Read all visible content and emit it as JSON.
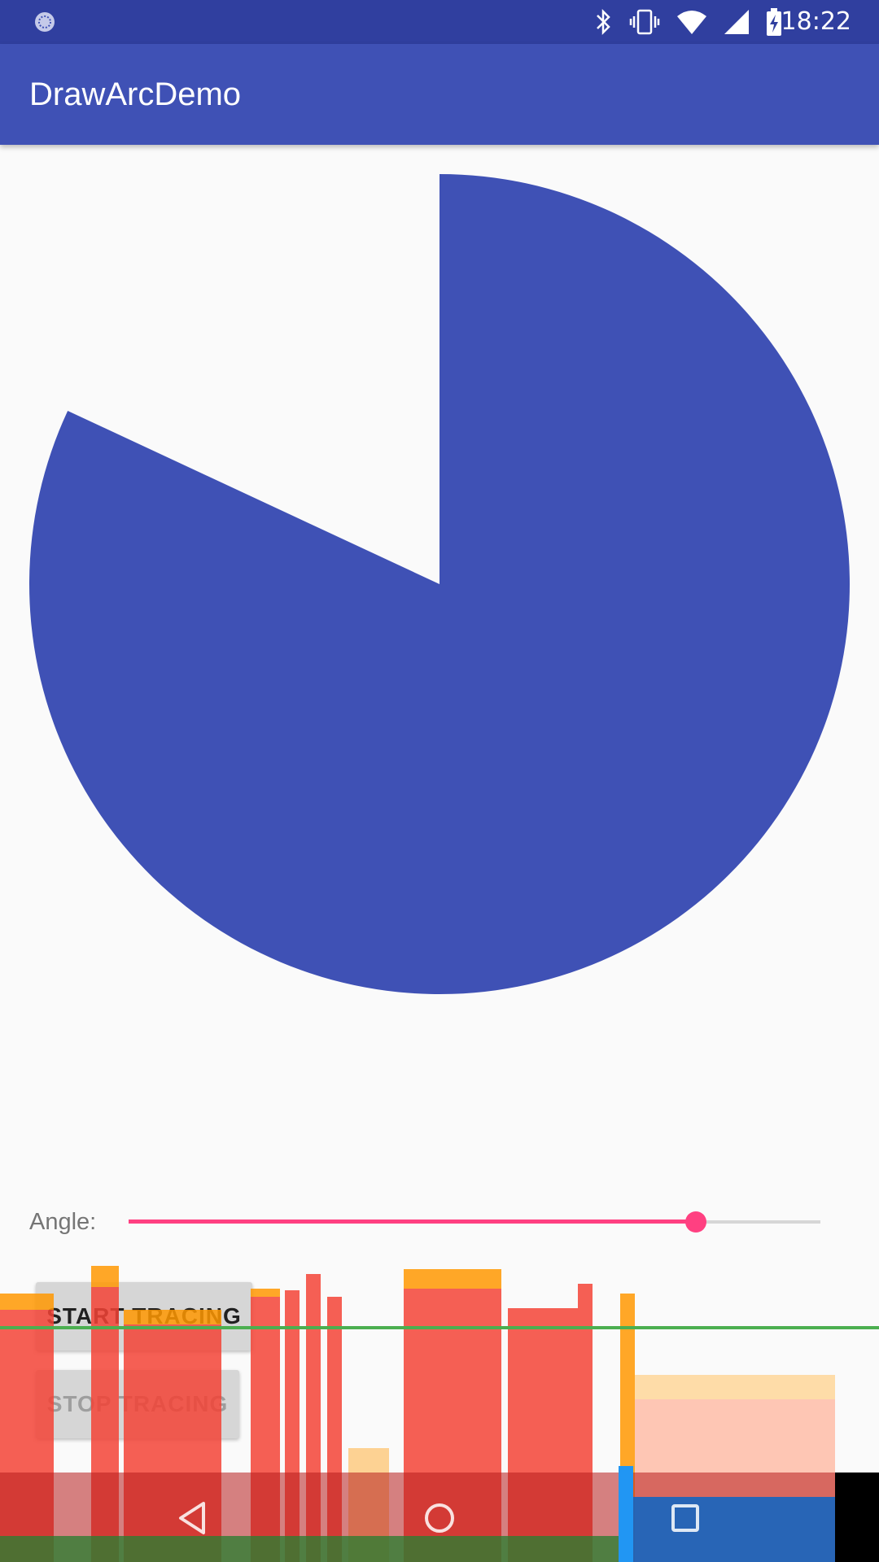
{
  "status_bar": {
    "time": "18:22",
    "icons": [
      "notification-icon",
      "bluetooth-icon",
      "vibrate-icon",
      "wifi-icon",
      "signal-icon",
      "battery-charging-icon"
    ]
  },
  "app_bar": {
    "title": "DrawArcDemo"
  },
  "arc": {
    "color": "#3f51b5",
    "start_angle_deg": -90,
    "sweep_angle_deg": 295
  },
  "angle_control": {
    "label": "Angle:",
    "value_fraction": 0.82,
    "accent": "#ff4081"
  },
  "buttons": {
    "start_label": "START TRACING",
    "stop_label": "STOP TRACING"
  },
  "navigation": {
    "icons": [
      "back-icon",
      "home-icon",
      "recents-icon"
    ]
  },
  "colors": {
    "status_bar": "#303f9f",
    "app_bar": "#3f51b5",
    "background": "#fafafa",
    "gpu_threshold": "#4caf50"
  }
}
